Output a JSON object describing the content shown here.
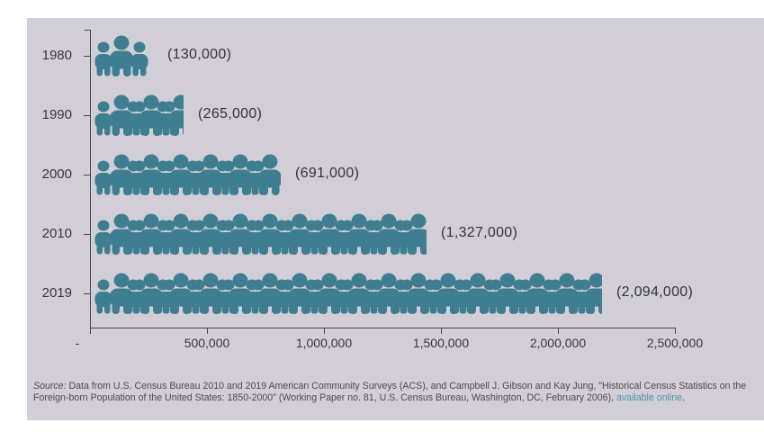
{
  "colors": {
    "page_background": "#ffffff",
    "panel_background": "#d1ced7",
    "icon": "#3f7e91",
    "axis": "#4a4a4a",
    "label_text": "#3a363b",
    "source_text": "#4f4956",
    "link": "#4e93a5"
  },
  "chart_data": {
    "type": "bar",
    "subtype": "pictogram",
    "orientation": "horizontal",
    "title": "",
    "categories": [
      "1980",
      "1990",
      "2000",
      "2010",
      "2019"
    ],
    "values": [
      130000,
      265000,
      691000,
      1327000,
      2094000
    ],
    "value_labels": [
      "(130,000)",
      "(265,000)",
      "(691,000)",
      "(1,327,000)",
      "(2,094,000)"
    ],
    "icon": "people-group",
    "icon_unit": 130000,
    "xlim": [
      0,
      2500000
    ],
    "x_tick_labels": [
      "-",
      "500,000",
      "1,000,000",
      "1,500,000",
      "2,000,000",
      "2,500,000"
    ],
    "grid": false,
    "legend": false
  },
  "source": {
    "label": "Source:",
    "text": " Data from U.S. Census Bureau 2010 and 2019 American Community Surveys (ACS), and Campbell J. Gibson and Kay Jung, \"Historical Census Statistics on the Foreign-born Population of the United States: 1850-2000\" (Working Paper no. 81, U.S. Census Bureau, Washington, DC, February 2006), ",
    "link_text": "available online",
    "suffix": "."
  }
}
